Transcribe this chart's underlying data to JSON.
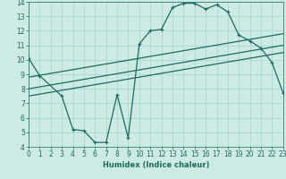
{
  "xlabel": "Humidex (Indice chaleur)",
  "bg_color": "#ceeae5",
  "grid_color": "#aad8d2",
  "line_color": "#1a6b60",
  "xmin": 0,
  "xmax": 23,
  "ymin": 4,
  "ymax": 14,
  "line1_x": [
    0,
    1,
    3,
    4,
    5,
    6,
    7,
    8,
    9,
    10,
    11,
    12,
    13,
    14,
    15,
    16,
    17,
    18,
    19,
    20,
    21,
    22,
    23
  ],
  "line1_y": [
    10.1,
    8.9,
    7.5,
    5.2,
    5.1,
    4.3,
    4.3,
    7.6,
    4.6,
    11.1,
    12.0,
    12.1,
    13.6,
    13.9,
    13.9,
    13.5,
    13.8,
    13.3,
    11.7,
    11.3,
    10.8,
    9.8,
    7.7
  ],
  "line2_x": [
    0,
    23
  ],
  "line2_y": [
    8.8,
    11.8
  ],
  "line3_x": [
    0,
    23
  ],
  "line3_y": [
    8.0,
    11.0
  ],
  "line4_x": [
    0,
    23
  ],
  "line4_y": [
    7.5,
    10.5
  ]
}
